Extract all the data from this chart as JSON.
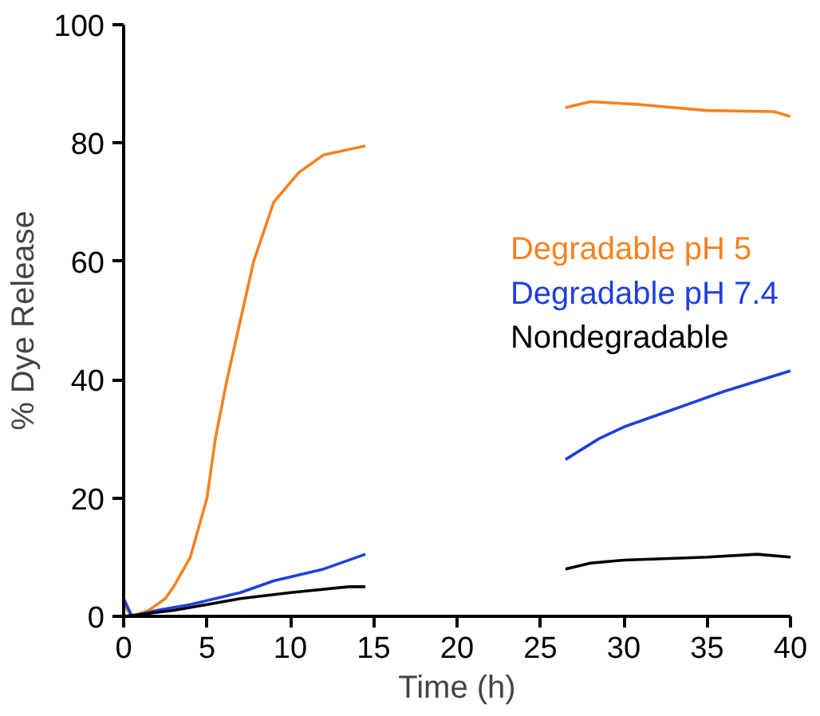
{
  "chart_data": {
    "type": "line",
    "xlabel": "Time (h)",
    "ylabel": "% Dye Release",
    "xlim": [
      0,
      40
    ],
    "ylim": [
      0,
      100
    ],
    "xticks": [
      0,
      5,
      10,
      15,
      20,
      25,
      30,
      35,
      40
    ],
    "yticks": [
      0,
      20,
      40,
      60,
      80,
      100
    ],
    "grid": false,
    "legend": "right",
    "marker": "none",
    "line_style": "solid",
    "series": [
      {
        "name": "Degradable pH 5",
        "color": "#f5821f",
        "x": [
          0,
          0.5,
          1.5,
          2.5,
          3,
          4,
          5,
          5.5,
          6.2,
          7,
          7.8,
          9,
          10.5,
          12,
          14.5,
          20,
          26.5,
          28,
          31,
          35,
          39,
          40
        ],
        "values": [
          2,
          0,
          1,
          3,
          5,
          10,
          20,
          30,
          40,
          50,
          60,
          70,
          75,
          78,
          79.5,
          null,
          86,
          87,
          86.5,
          85.5,
          85.3,
          84.5
        ]
      },
      {
        "name": "Degradable pH 7.4",
        "color": "#1f3fdf",
        "x": [
          0,
          0.5,
          2,
          4,
          7,
          9,
          12,
          14.5,
          20,
          26.5,
          28.5,
          30,
          33,
          36,
          40
        ],
        "values": [
          3,
          0,
          1,
          2,
          4,
          6,
          8,
          10.5,
          null,
          26.5,
          30,
          32,
          35,
          38,
          41.5
        ]
      },
      {
        "name": "Nondegradable",
        "color": "#000000",
        "x": [
          0,
          3,
          5,
          7,
          10,
          13.5,
          14.5,
          20,
          26.5,
          28,
          30,
          35,
          38,
          40
        ],
        "values": [
          0,
          1,
          2,
          3,
          4,
          5,
          5,
          null,
          8,
          9,
          9.5,
          10,
          10.5,
          10
        ]
      }
    ]
  }
}
